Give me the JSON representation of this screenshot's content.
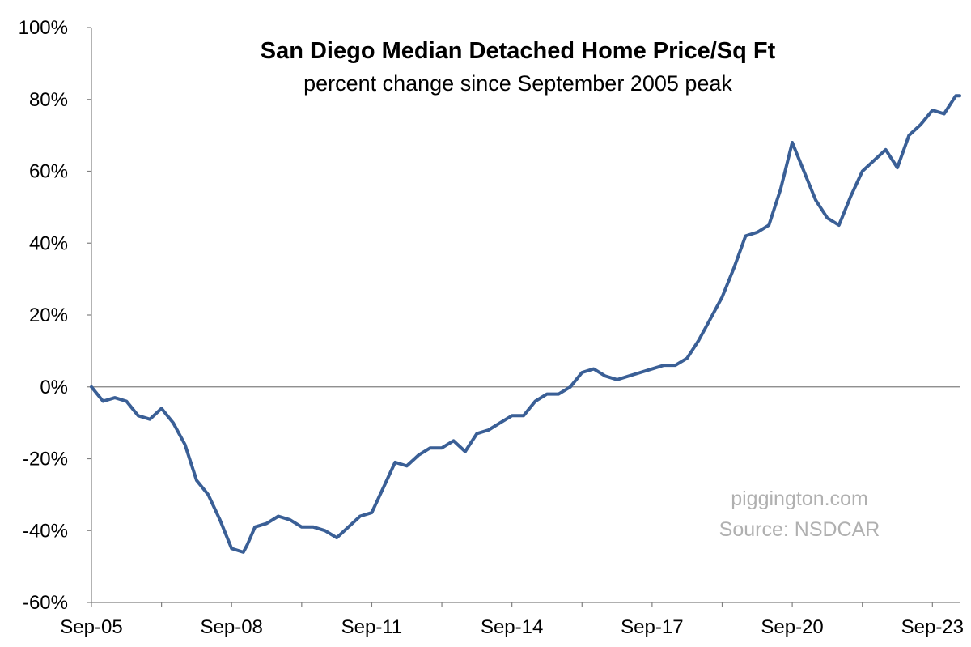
{
  "chart_data": {
    "type": "line",
    "title": "San Diego Median Detached Home Price/Sq Ft",
    "subtitle": "percent change since September 2005 peak",
    "ylim": [
      -60,
      100
    ],
    "y_ticks": [
      -60,
      -40,
      -20,
      0,
      20,
      40,
      60,
      80,
      100
    ],
    "y_tick_labels": [
      "-60%",
      "-40%",
      "-20%",
      "0%",
      "20%",
      "40%",
      "60%",
      "80%",
      "100%"
    ],
    "x_range": [
      "2005-09",
      "2024-04"
    ],
    "x_ticks": [
      "2005-09",
      "2008-09",
      "2011-09",
      "2014-09",
      "2017-09",
      "2020-09",
      "2023-09"
    ],
    "x_tick_labels": [
      "Sep-05",
      "Sep-08",
      "Sep-11",
      "Sep-14",
      "Sep-17",
      "Sep-20",
      "Sep-23"
    ],
    "grid": false,
    "zero_line": true,
    "line_color": "#3a5f96",
    "annotations": [
      "piggington.com",
      "Source: NSDCAR"
    ],
    "series": [
      {
        "x": [
          "2005-09",
          "2005-12",
          "2006-03",
          "2006-06",
          "2006-09",
          "2006-12",
          "2007-03",
          "2007-06",
          "2007-09",
          "2007-12",
          "2008-03",
          "2008-06",
          "2008-09",
          "2008-12",
          "2009-01",
          "2009-03",
          "2009-06",
          "2009-09",
          "2009-12",
          "2010-03",
          "2010-06",
          "2010-09",
          "2010-12",
          "2011-03",
          "2011-06",
          "2011-09",
          "2011-12",
          "2012-03",
          "2012-06",
          "2012-09",
          "2012-12",
          "2013-03",
          "2013-06",
          "2013-09",
          "2013-12",
          "2014-03",
          "2014-06",
          "2014-09",
          "2014-12",
          "2015-03",
          "2015-06",
          "2015-09",
          "2015-12",
          "2016-03",
          "2016-06",
          "2016-09",
          "2016-12",
          "2017-03",
          "2017-06",
          "2017-09",
          "2017-12",
          "2018-03",
          "2018-06",
          "2018-09",
          "2018-12",
          "2019-03",
          "2019-06",
          "2019-09",
          "2019-12",
          "2020-03",
          "2020-06",
          "2020-09",
          "2020-12",
          "2021-03",
          "2021-06",
          "2021-09",
          "2021-12",
          "2022-03",
          "2022-06",
          "2022-09",
          "2022-12",
          "2023-03",
          "2023-06",
          "2023-09",
          "2023-12",
          "2024-03",
          "2024-04"
        ],
        "y": [
          0,
          -4,
          -3,
          -4,
          -8,
          -9,
          -6,
          -10,
          -16,
          -26,
          -30,
          -37,
          -45,
          -46,
          -44,
          -39,
          -38,
          -36,
          -37,
          -39,
          -39,
          -40,
          -42,
          -39,
          -36,
          -35,
          -28,
          -21,
          -22,
          -19,
          -17,
          -17,
          -15,
          -18,
          -13,
          -12,
          -10,
          -8,
          -8,
          -4,
          -2,
          -2,
          0,
          4,
          5,
          3,
          2,
          3,
          4,
          5,
          6,
          6,
          8,
          13,
          19,
          25,
          33,
          42,
          43,
          45,
          55,
          68,
          60,
          52,
          47,
          45,
          53,
          60,
          63,
          66,
          61,
          70,
          73,
          77,
          76,
          81,
          81
        ]
      }
    ]
  }
}
